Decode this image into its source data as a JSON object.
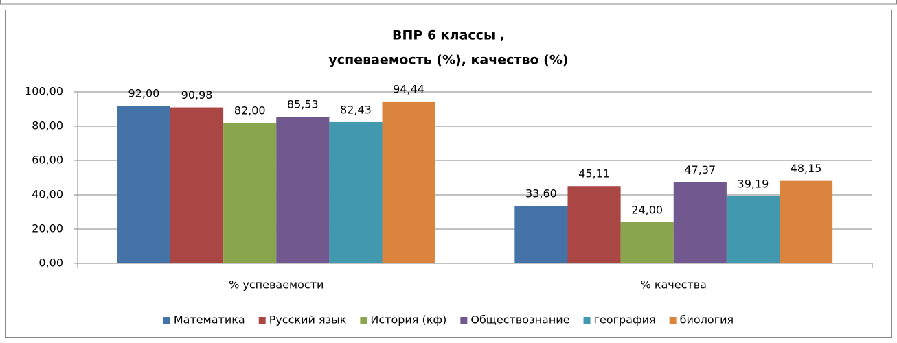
{
  "chart_data": {
    "type": "bar",
    "title": [
      "ВПР 6 классы ,",
      "успеваемость (%), качество (%)"
    ],
    "categories": [
      "% успеваемости",
      "% качества"
    ],
    "series": [
      {
        "name": "Математика",
        "color": "#4572a7",
        "values": [
          92,
          33.6
        ],
        "value_labels": [
          "92,00",
          "33,60"
        ]
      },
      {
        "name": "Русский язык",
        "color": "#aa4643",
        "values": [
          90.98,
          45.11
        ],
        "value_labels": [
          "90,98",
          "45,11"
        ]
      },
      {
        "name": "История (кф)",
        "color": "#89a54e",
        "values": [
          82,
          24
        ],
        "value_labels": [
          "82,00",
          "24,00"
        ]
      },
      {
        "name": "Обществознание",
        "color": "#71588f",
        "values": [
          85.53,
          47.37
        ],
        "value_labels": [
          "85,53",
          "47,37"
        ]
      },
      {
        "name": "география",
        "color": "#4198af",
        "values": [
          82.43,
          39.19
        ],
        "value_labels": [
          "82,43",
          "39,19"
        ]
      },
      {
        "name": "биология",
        "color": "#db843d",
        "values": [
          94.44,
          48.15
        ],
        "value_labels": [
          "94,44",
          "48,15"
        ]
      }
    ],
    "ylim": [
      0,
      100
    ],
    "yticks": [
      {
        "value": 0,
        "label": "0,00"
      },
      {
        "value": 20,
        "label": "20,00"
      },
      {
        "value": 40,
        "label": "40,00"
      },
      {
        "value": 60,
        "label": "60,00"
      },
      {
        "value": 80,
        "label": "80,00"
      },
      {
        "value": 100,
        "label": "100,00"
      }
    ],
    "grid": true,
    "legend": "bottom"
  }
}
